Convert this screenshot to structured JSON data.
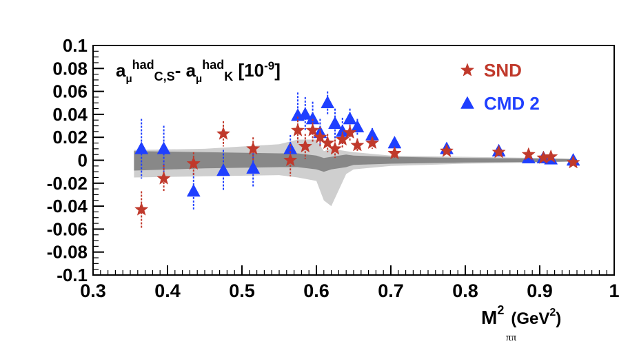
{
  "chart_data": {
    "type": "scatter",
    "title": "",
    "xlabel_main": "M",
    "xlabel_sup": "2",
    "xlabel_sub": "ππ",
    "xlabel_units": "(GeV",
    "xlabel_units_sup": "2",
    "xlabel_units_close": ")",
    "ylabel": "",
    "annotation": {
      "a1": "a",
      "mu1": "μ",
      "had1": "had",
      "cs": "C,S",
      "minus": "- ",
      "a2": "a",
      "mu2": "μ",
      "had2": "had",
      "k": "K",
      "scale": " [10",
      "scale_exp": "-9",
      "scale_close": "]"
    },
    "xlim": [
      0.3,
      1.0
    ],
    "ylim": [
      -0.1,
      0.1
    ],
    "x_ticks": [
      0.3,
      0.4,
      0.5,
      0.6,
      0.7,
      0.8,
      0.9,
      1.0
    ],
    "x_tick_labels": [
      "0.3",
      "0.4",
      "0.5",
      "0.6",
      "0.7",
      "0.8",
      "0.9",
      "1"
    ],
    "y_ticks": [
      -0.1,
      -0.08,
      -0.06,
      -0.04,
      -0.02,
      0,
      0.02,
      0.04,
      0.06,
      0.08,
      0.1
    ],
    "y_tick_labels": [
      "-0.1",
      "-0.08",
      "-0.06",
      "-0.04",
      "-0.02",
      "0",
      "0.02",
      "0.04",
      "0.06",
      "0.08",
      "0.1"
    ],
    "legend": {
      "position": "top-right",
      "entries": [
        {
          "name": "SND",
          "marker": "star",
          "color": "#c0392b"
        },
        {
          "name": "CMD 2",
          "marker": "triangle",
          "color": "#1f3fff"
        }
      ]
    },
    "bands": {
      "outer": {
        "color": "#cfcfcf",
        "x": [
          0.355,
          0.45,
          0.55,
          0.575,
          0.6,
          0.61,
          0.62,
          0.64,
          0.65,
          0.7,
          0.8,
          0.9,
          0.95
        ],
        "upper": [
          0.009,
          0.01,
          0.014,
          0.018,
          0.018,
          0.008,
          0.01,
          0.008,
          0.007,
          0.004,
          0.003,
          0.002,
          0.001
        ],
        "lower": [
          -0.015,
          -0.014,
          -0.013,
          -0.015,
          -0.018,
          -0.035,
          -0.04,
          -0.012,
          -0.008,
          -0.005,
          -0.003,
          -0.002,
          -0.001
        ]
      },
      "inner": {
        "color": "#888888",
        "x": [
          0.355,
          0.45,
          0.55,
          0.575,
          0.6,
          0.61,
          0.62,
          0.64,
          0.65,
          0.7,
          0.8,
          0.9,
          0.95
        ],
        "upper": [
          0.008,
          0.007,
          0.006,
          0.006,
          0.004,
          0.002,
          0.003,
          0.005,
          0.004,
          0.003,
          0.002,
          0.0015,
          0.001
        ],
        "lower": [
          -0.009,
          -0.007,
          -0.006,
          -0.006,
          -0.008,
          -0.01,
          -0.008,
          -0.006,
          -0.004,
          -0.003,
          -0.002,
          -0.0015,
          -0.001
        ]
      }
    },
    "series": [
      {
        "name": "SND",
        "marker": "star",
        "color": "#c0392b",
        "points": [
          {
            "x": 0.365,
            "y": -0.043,
            "err": 0.016
          },
          {
            "x": 0.395,
            "y": -0.016,
            "err": 0.012
          },
          {
            "x": 0.435,
            "y": -0.003,
            "err": 0.01
          },
          {
            "x": 0.475,
            "y": 0.023,
            "err": 0.011
          },
          {
            "x": 0.515,
            "y": 0.01,
            "err": 0.01
          },
          {
            "x": 0.565,
            "y": 0.0,
            "err": 0.014
          },
          {
            "x": 0.575,
            "y": 0.026,
            "err": 0.012
          },
          {
            "x": 0.585,
            "y": 0.012,
            "err": 0.011
          },
          {
            "x": 0.595,
            "y": 0.026,
            "err": 0.01
          },
          {
            "x": 0.605,
            "y": 0.02,
            "err": 0.009
          },
          {
            "x": 0.615,
            "y": 0.015,
            "err": 0.008
          },
          {
            "x": 0.625,
            "y": 0.01,
            "err": 0.008
          },
          {
            "x": 0.635,
            "y": 0.018,
            "err": 0.007
          },
          {
            "x": 0.645,
            "y": 0.024,
            "err": 0.007
          },
          {
            "x": 0.655,
            "y": 0.013,
            "err": 0.006
          },
          {
            "x": 0.675,
            "y": 0.015,
            "err": 0.005
          },
          {
            "x": 0.705,
            "y": 0.006,
            "err": 0.004
          },
          {
            "x": 0.775,
            "y": 0.008,
            "err": 0.003
          },
          {
            "x": 0.845,
            "y": 0.007,
            "err": 0.003
          },
          {
            "x": 0.885,
            "y": 0.005,
            "err": 0.003
          },
          {
            "x": 0.905,
            "y": 0.002,
            "err": 0.002
          },
          {
            "x": 0.915,
            "y": 0.003,
            "err": 0.002
          },
          {
            "x": 0.945,
            "y": -0.002,
            "err": 0.002
          }
        ]
      },
      {
        "name": "CMD 2",
        "marker": "triangle",
        "color": "#1f3fff",
        "points": [
          {
            "x": 0.365,
            "y": 0.01,
            "err": 0.026
          },
          {
            "x": 0.395,
            "y": 0.01,
            "err": 0.02
          },
          {
            "x": 0.435,
            "y": -0.027,
            "err": 0.016
          },
          {
            "x": 0.475,
            "y": -0.009,
            "err": 0.018
          },
          {
            "x": 0.515,
            "y": -0.007,
            "err": 0.016
          },
          {
            "x": 0.565,
            "y": 0.01,
            "err": 0.012
          },
          {
            "x": 0.575,
            "y": 0.039,
            "err": 0.02
          },
          {
            "x": 0.585,
            "y": 0.04,
            "err": 0.015
          },
          {
            "x": 0.595,
            "y": 0.036,
            "err": 0.015
          },
          {
            "x": 0.605,
            "y": 0.024,
            "err": 0.012
          },
          {
            "x": 0.615,
            "y": 0.05,
            "err": 0.01
          },
          {
            "x": 0.625,
            "y": 0.032,
            "err": 0.013
          },
          {
            "x": 0.635,
            "y": 0.025,
            "err": 0.012
          },
          {
            "x": 0.645,
            "y": 0.036,
            "err": 0.009
          },
          {
            "x": 0.655,
            "y": 0.029,
            "err": 0.007
          },
          {
            "x": 0.675,
            "y": 0.022,
            "err": 0.006
          },
          {
            "x": 0.705,
            "y": 0.015,
            "err": 0.005
          },
          {
            "x": 0.775,
            "y": 0.01,
            "err": 0.004
          },
          {
            "x": 0.845,
            "y": 0.008,
            "err": 0.003
          },
          {
            "x": 0.885,
            "y": 0.002,
            "err": 0.003
          },
          {
            "x": 0.905,
            "y": 0.002,
            "err": 0.002
          },
          {
            "x": 0.915,
            "y": 0.001,
            "err": 0.002
          },
          {
            "x": 0.945,
            "y": 0.0,
            "err": 0.002
          }
        ]
      }
    ]
  }
}
